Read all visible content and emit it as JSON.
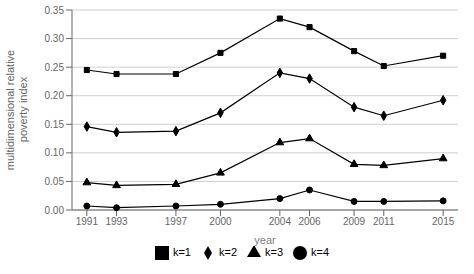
{
  "chart_data": {
    "type": "line",
    "x_label": "year",
    "y_label": "multidimensional relative\npoverty index",
    "x": [
      1991,
      1993,
      1997,
      2000,
      2004,
      2006,
      2009,
      2011,
      2015
    ],
    "xlim": [
      1990,
      2016
    ],
    "xticks": [
      1991,
      1993,
      1997,
      2000,
      2004,
      2006,
      2009,
      2011,
      2015
    ],
    "ylim": [
      0.0,
      0.35
    ],
    "yticks": [
      {
        "value": 0.0,
        "label": "0.00"
      },
      0.05,
      {
        "value": 0.1,
        "label": "0.10"
      },
      0.15,
      {
        "value": 0.2,
        "label": "0.20"
      },
      0.25,
      {
        "value": 0.3,
        "label": "0.30"
      },
      0.35
    ],
    "grid": true,
    "legend": "bottom",
    "series": [
      {
        "name": "k=1",
        "color": "#000000",
        "marker": "square",
        "values": [
          0.245,
          0.238,
          0.238,
          0.275,
          0.335,
          0.32,
          0.278,
          0.252,
          0.27
        ]
      },
      {
        "name": "k=2",
        "color": "#000000",
        "marker": "diamond",
        "values": [
          0.146,
          0.136,
          0.138,
          0.17,
          0.24,
          0.23,
          0.18,
          0.165,
          0.192
        ]
      },
      {
        "name": "k=3",
        "color": "#000000",
        "marker": "triangle",
        "values": [
          0.048,
          0.043,
          0.045,
          0.065,
          0.118,
          0.125,
          0.08,
          0.078,
          0.09
        ]
      },
      {
        "name": "k=4",
        "color": "#000000",
        "marker": "circle",
        "values": [
          0.007,
          0.004,
          0.007,
          0.01,
          0.02,
          0.035,
          0.015,
          0.015,
          0.016
        ]
      }
    ]
  }
}
